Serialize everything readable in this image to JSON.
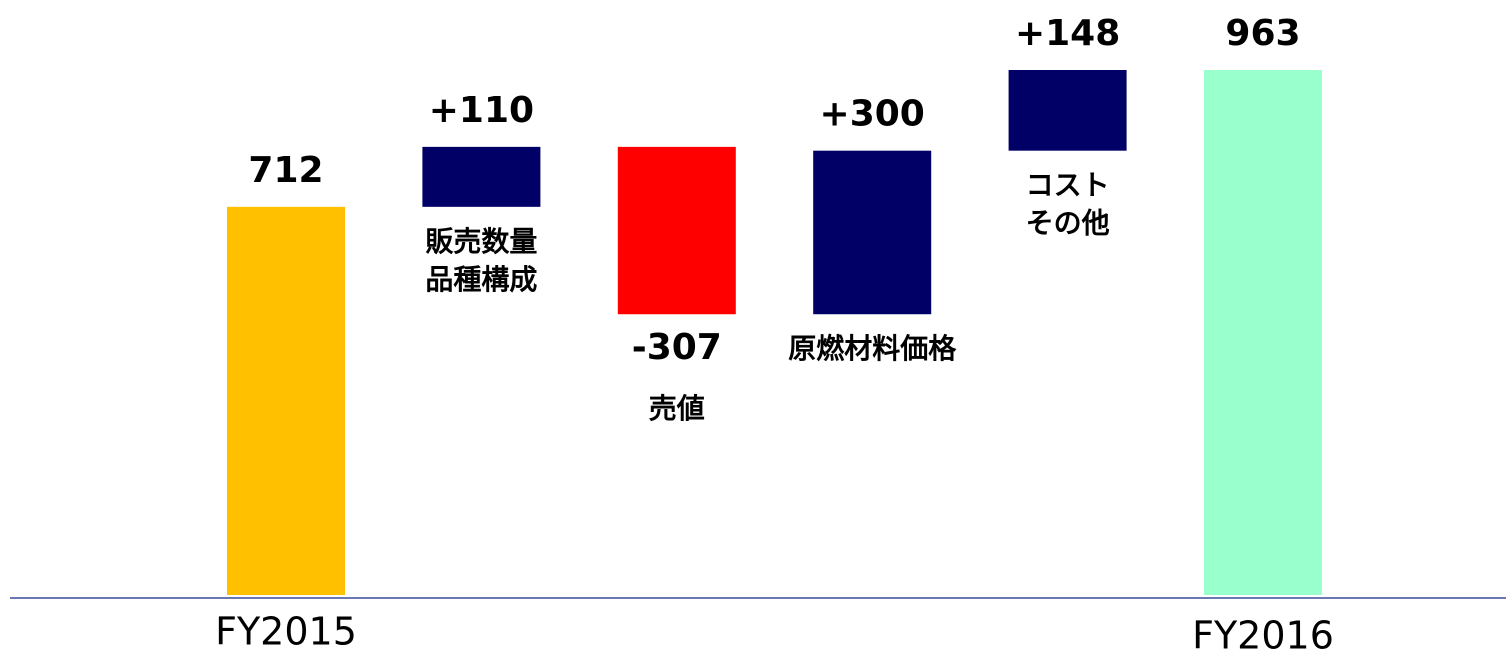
{
  "chart_data": {
    "type": "waterfall",
    "categories": [
      "FY2015",
      [
        "販売数量",
        "品種構成"
      ],
      "売値",
      "原燃材料価格",
      [
        "コスト",
        "その他"
      ],
      "FY2016"
    ],
    "values": [
      712,
      110,
      -307,
      300,
      148,
      963
    ],
    "value_labels": [
      "712",
      "+110",
      "-307",
      "+300",
      "+148",
      "963"
    ],
    "colors": [
      "#ffc000",
      "#000066",
      "#ff0000",
      "#000066",
      "#000066",
      "#99ffcc"
    ]
  }
}
